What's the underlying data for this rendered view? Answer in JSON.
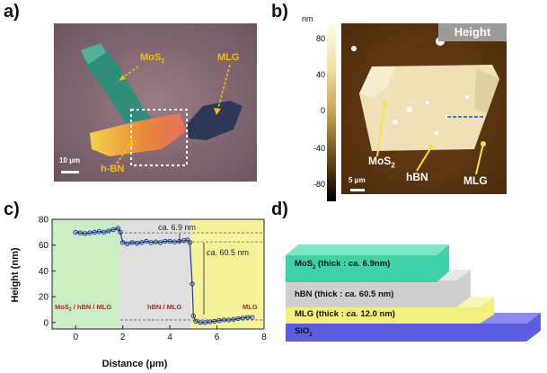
{
  "panels": {
    "a": {
      "letter": "a)",
      "labels": {
        "mos2": "MoS",
        "mos2_sub": "2",
        "mlg": "MLG",
        "hbn": "h-BN",
        "scalebar": "10 μm"
      },
      "colors": {
        "substrate": "#8c6f79",
        "mos2": "#2f8f7a",
        "hbn": "#e8a23a",
        "mlg": "#2d3858",
        "label": "#f2c200"
      }
    },
    "b": {
      "letter": "b)",
      "badge": "Height",
      "colorbar_unit": "nm",
      "colorbar_ticks": [
        "80",
        "40",
        "0",
        "-40",
        "-80"
      ],
      "labels": {
        "mos2": "MoS",
        "mos2_sub": "2",
        "hbn": "hBN",
        "mlg": "MLG",
        "scalebar": "5 μm"
      }
    },
    "c": {
      "letter": "c)",
      "region_labels": [
        "MoS",
        "2",
        " / hBN / MLG",
        "hBN / MLG",
        "MLG"
      ],
      "annotations": {
        "step1_prefix": "ca.",
        "step1_value": " 6.9 nm",
        "step2_prefix": "ca.",
        "step2_value": " 60.5 nm"
      },
      "colors": {
        "green": "#c9ecc3",
        "grey": "#dedede",
        "yellow": "#f6f29a",
        "line": "#1f3a93",
        "region_text": "#c0201f"
      }
    },
    "d": {
      "letter": "d)",
      "layers": [
        {
          "name": "MoS",
          "sub": "2",
          "text": "  (thick : ",
          "ca": "ca.",
          "value": " 6.9nm)",
          "color": "#3fd1a8"
        },
        {
          "name": "hBN",
          "sub": "",
          "text": "  (thick : ",
          "ca": "ca.",
          "value": " 60.5 nm)",
          "color": "#cfcfcf"
        },
        {
          "name": "MLG",
          "sub": "",
          "text": "  (thick : ",
          "ca": "ca.",
          "value": " 12.0 nm)",
          "color": "#f2f07a"
        },
        {
          "name": "SiO",
          "sub": "2",
          "text": "",
          "ca": "",
          "value": "",
          "color": "#5b5ee0"
        }
      ]
    }
  },
  "chart_data": {
    "type": "line",
    "xlabel": "Distance (μm)",
    "ylabel": "Height (nm)",
    "xlim": [
      -1,
      8
    ],
    "ylim": [
      -5,
      80
    ],
    "xticks": [
      "0",
      "2",
      "4",
      "6",
      "8"
    ],
    "yticks": [
      "0",
      "20",
      "40",
      "60",
      "80"
    ],
    "regions": [
      {
        "label": "MoS2 / hBN / MLG",
        "x": [
          -1,
          1.9
        ]
      },
      {
        "label": "hBN / MLG",
        "x": [
          1.9,
          4.9
        ]
      },
      {
        "label": "MLG",
        "x": [
          4.9,
          8
        ]
      }
    ],
    "reference_lines": [
      69.5,
      62.5,
      2.0
    ],
    "series": [
      {
        "x": [
          0,
          0.2,
          0.4,
          0.6,
          0.8,
          1.0,
          1.2,
          1.4,
          1.6,
          1.8,
          1.9,
          2.0,
          2.2,
          2.4,
          2.6,
          2.8,
          3.0,
          3.2,
          3.4,
          3.6,
          3.8,
          4.0,
          4.2,
          4.4,
          4.6,
          4.75,
          4.85,
          4.95,
          5.0,
          5.1,
          5.3,
          5.5,
          5.7,
          5.9,
          6.1,
          6.3,
          6.5,
          6.7,
          6.9,
          7.1,
          7.3,
          7.5
        ],
        "y": [
          70,
          69.5,
          69,
          69.5,
          70,
          70.5,
          70,
          71,
          72,
          73,
          70,
          62,
          61,
          62,
          61.5,
          62,
          63,
          62,
          62.5,
          62,
          63,
          63,
          62.5,
          63,
          63.5,
          64,
          62,
          30,
          5,
          1,
          0,
          0,
          0.5,
          1,
          1.5,
          2,
          2,
          2.5,
          3,
          3.5,
          4,
          4
        ]
      }
    ]
  }
}
